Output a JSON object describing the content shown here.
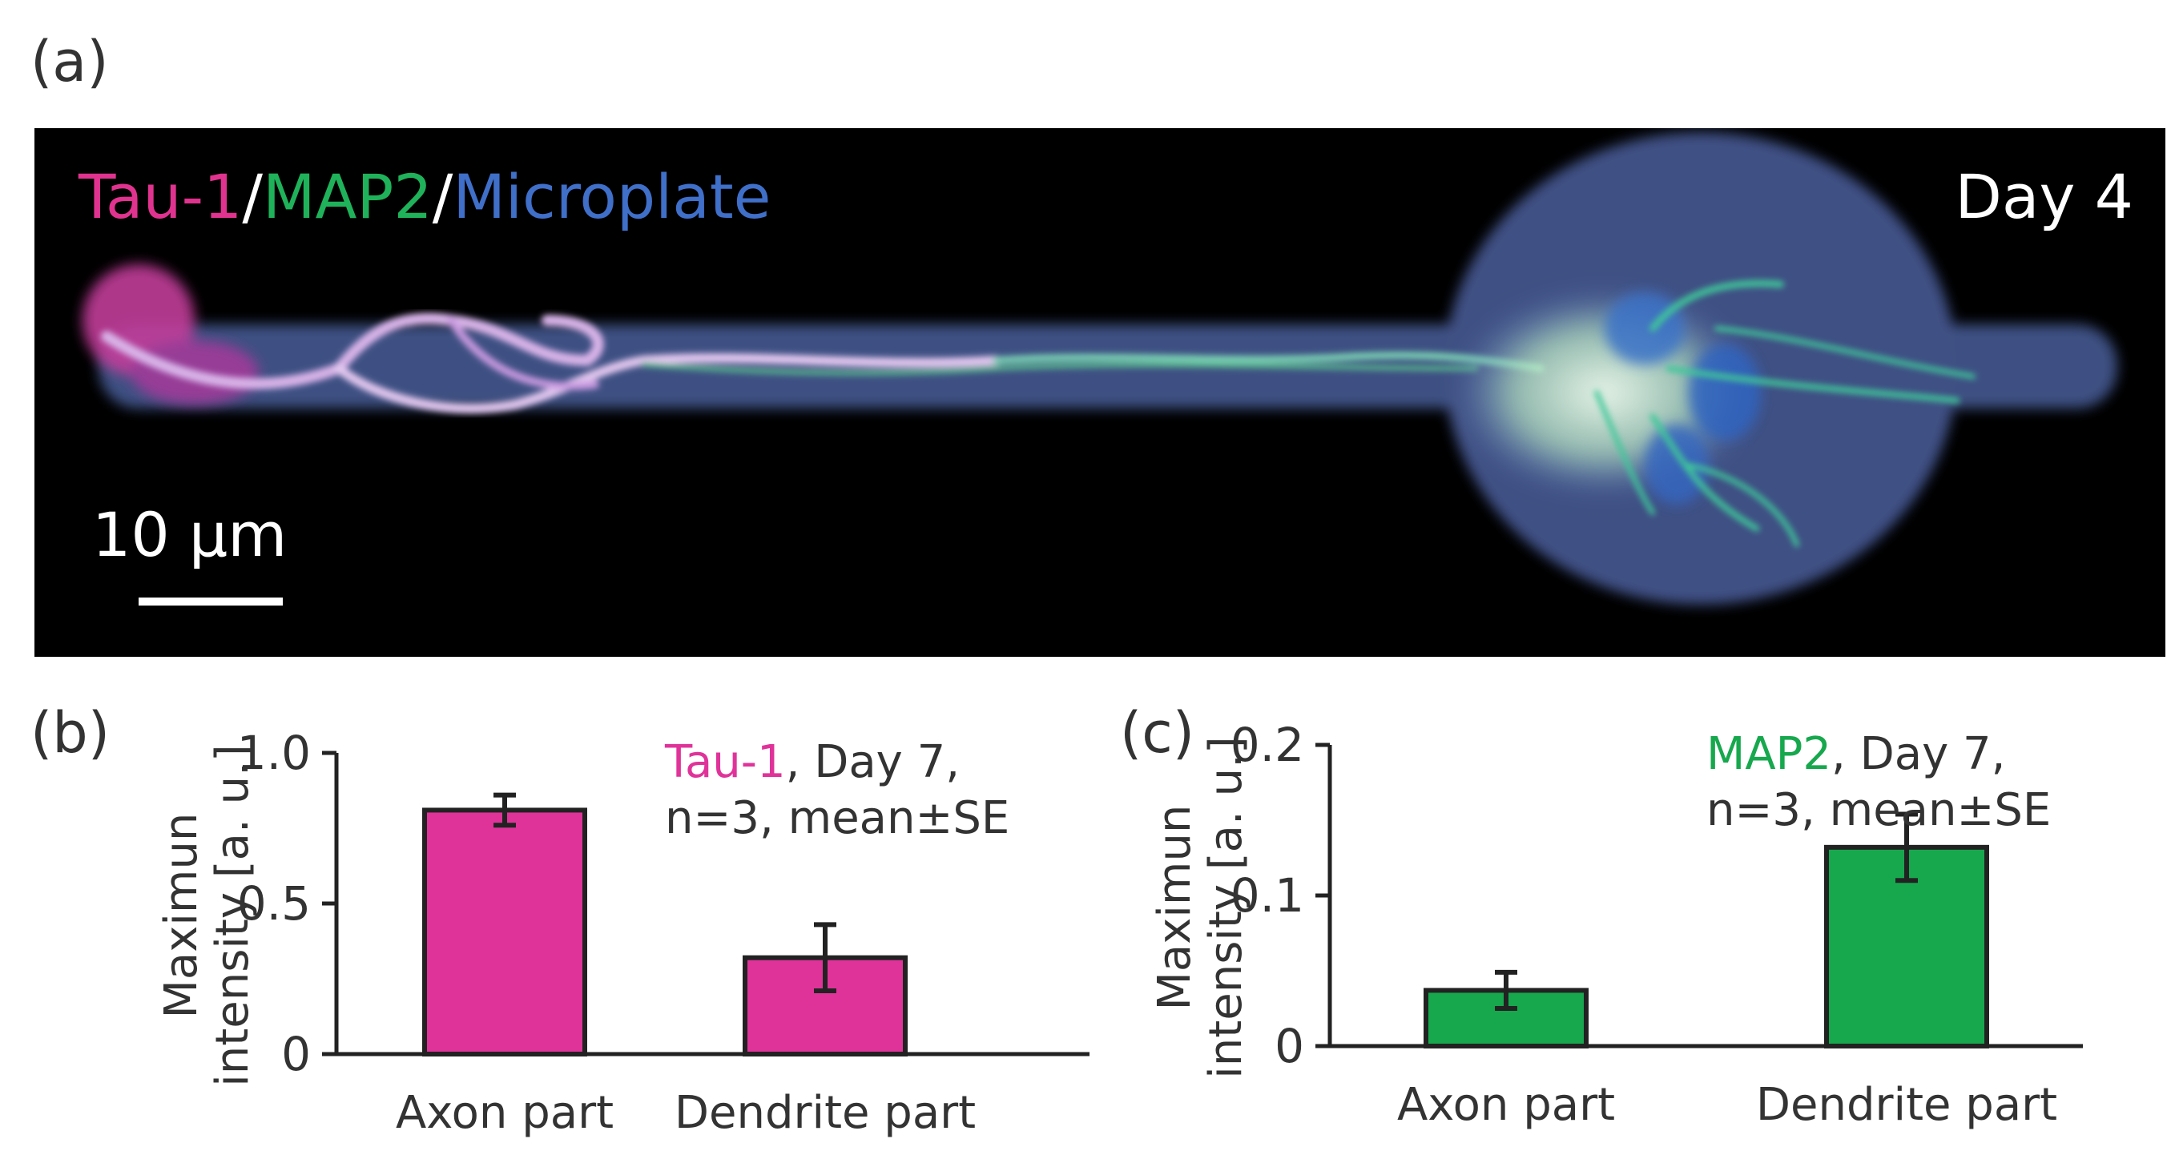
{
  "panels": {
    "a": "(a)",
    "b": "(b)",
    "c": "(c)"
  },
  "micrograph": {
    "stain_labels": [
      {
        "text": "Tau-1",
        "color": "#e0338f"
      },
      {
        "text": "/",
        "color": "#ffffff"
      },
      {
        "text": "MAP2",
        "color": "#1fb25a"
      },
      {
        "text": "/",
        "color": "#ffffff"
      },
      {
        "text": "Microplate",
        "color": "#3f6fc8"
      }
    ],
    "day_label": "Day 4",
    "scale_bar_label": "10 µm"
  },
  "chart_data": [
    {
      "type": "bar",
      "panel": "(b)",
      "categories": [
        "Axon part",
        "Dendrite part"
      ],
      "values": [
        0.81,
        0.32
      ],
      "errors": [
        0.05,
        0.11
      ],
      "ylabel_lines": [
        "Maximun",
        "intensity [a. u.]"
      ],
      "ylim": [
        0,
        1.0
      ],
      "yticks": [
        0,
        0.5,
        1.0
      ],
      "ytick_labels": [
        "0",
        "0.5",
        "1.0"
      ],
      "bar_color": "#e0339a",
      "annotation": {
        "highlight": "Tau-1",
        "highlight_color": "#e0339a",
        "rest_line1": ", Day 7,",
        "line2": "n=3, mean±SE"
      }
    },
    {
      "type": "bar",
      "panel": "(c)",
      "categories": [
        "Axon part",
        "Dendrite part"
      ],
      "values": [
        0.037,
        0.132
      ],
      "errors": [
        0.012,
        0.022
      ],
      "ylabel_lines": [
        "Maximun",
        "intensity [a. u.]"
      ],
      "ylim": [
        0,
        0.2
      ],
      "yticks": [
        0,
        0.1,
        0.2
      ],
      "ytick_labels": [
        "0",
        "0.1",
        "0.2"
      ],
      "bar_color": "#17a84e",
      "annotation": {
        "highlight": "MAP2",
        "highlight_color": "#17a84e",
        "rest_line1": ", Day 7,",
        "line2": "n=3, mean±SE"
      }
    }
  ]
}
